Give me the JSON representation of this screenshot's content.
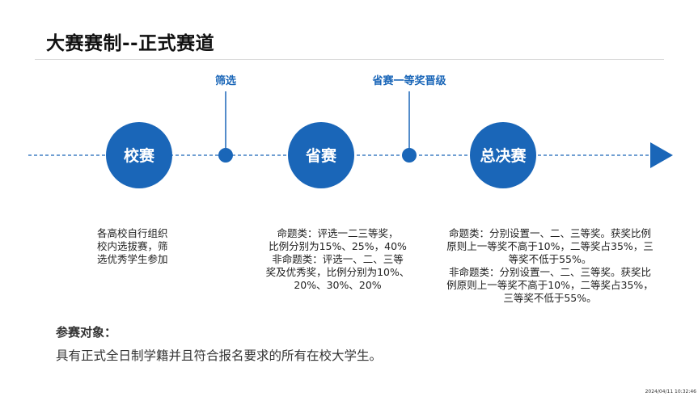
{
  "slide": {
    "title": "大赛赛制--正式赛道"
  },
  "timeline": {
    "stages": [
      {
        "label": "校赛"
      },
      {
        "label": "省赛"
      },
      {
        "label": "总决赛"
      }
    ],
    "markers": [
      {
        "label": "筛选"
      },
      {
        "label": "省赛一等奖晋级"
      }
    ]
  },
  "descriptions": {
    "school": [
      "各高校自行组织",
      "校内选拔赛，筛",
      "选优秀学生参加"
    ],
    "provincial": [
      "命题类：评选一二三等奖，",
      "比例分别为15%、25%，40%",
      "非命题类：评选一、二、三等",
      "奖及优秀奖，比例分别为10%、",
      "20%、30%、20%"
    ],
    "final": [
      "命题类：分别设置一、二、三等奖。获奖比例",
      "原则上一等奖不高于10%，二等奖占35%，三",
      "等奖不低于55%。",
      "非命题类：分别设置一、二、三等奖。获奖比",
      "例原则上一等奖不高于10%，二等奖占35%，",
      "三等奖不低于55%。"
    ]
  },
  "participants": {
    "title": "参赛对象：",
    "body": "具有正式全日制学籍并且符合报名要求的所有在校大学生。"
  },
  "timestamp": "2024/04/11 10:32:46",
  "colors": {
    "primary_blue": "#1a66b8",
    "text_dark": "#222222",
    "rule_gray": "#d9d9d9"
  }
}
